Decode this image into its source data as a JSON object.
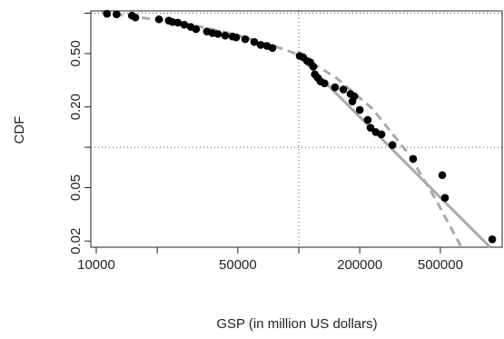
{
  "chart_data": {
    "type": "scatter",
    "xlabel": "GSP (in million US dollars)",
    "ylabel": "CDF",
    "xlog": true,
    "ylog": true,
    "xlim": [
      9400,
      1010000
    ],
    "ylim": [
      0.018,
      1.04
    ],
    "xticks": [
      10000,
      50000,
      200000,
      500000
    ],
    "xticks_unlabeled": [
      20000,
      100000
    ],
    "yticks": [
      {
        "value": 0.5,
        "label": "0.50"
      },
      {
        "value": 0.2,
        "label": "0.20"
      },
      0.05,
      0.02
    ],
    "yticks_unlabeled": [
      0.1,
      1
    ],
    "reference_lines": {
      "x": [
        100000
      ],
      "y": [
        0.1,
        1
      ]
    },
    "series": [
      {
        "color": "#000000",
        "x": [
          11300,
          12600,
          15000,
          15600,
          20400,
          22800,
          23800,
          25300,
          27200,
          29300,
          31100,
          35200,
          37500,
          39900,
          43300,
          47100,
          49100,
          54400,
          60300,
          64800,
          69700,
          74100,
          101000,
          105000,
          110000,
          114000,
          118000,
          120000,
          124000,
          128000,
          134000,
          151000,
          166000,
          180000,
          188000,
          184000,
          200000,
          219000,
          226000,
          240000,
          256000,
          290000,
          367000,
          511000,
          527000,
          902000
        ],
        "y": [
          0.99,
          0.98,
          0.96,
          0.93,
          0.9,
          0.88,
          0.86,
          0.85,
          0.82,
          0.79,
          0.76,
          0.73,
          0.71,
          0.7,
          0.68,
          0.67,
          0.66,
          0.64,
          0.61,
          0.58,
          0.57,
          0.55,
          0.48,
          0.47,
          0.44,
          0.43,
          0.4,
          0.35,
          0.33,
          0.31,
          0.3,
          0.28,
          0.27,
          0.25,
          0.24,
          0.22,
          0.19,
          0.16,
          0.14,
          0.13,
          0.125,
          0.104,
          0.082,
          0.062,
          0.042,
          0.0206
        ]
      }
    ],
    "lines": [
      {
        "style": "solid",
        "color": "#aaaaaa",
        "x": [
          100000,
          880000
        ],
        "y": [
          0.48,
          0.018
        ]
      },
      {
        "style": "dashed",
        "color": "#aaaaaa",
        "x": [
          10600,
          26400,
          49100,
          74100,
          100000,
          153000,
          231000,
          349000,
          475000,
          635000
        ],
        "y": [
          1.01,
          0.85,
          0.69,
          0.575,
          0.49,
          0.33,
          0.194,
          0.089,
          0.0408,
          0.018
        ]
      }
    ]
  }
}
